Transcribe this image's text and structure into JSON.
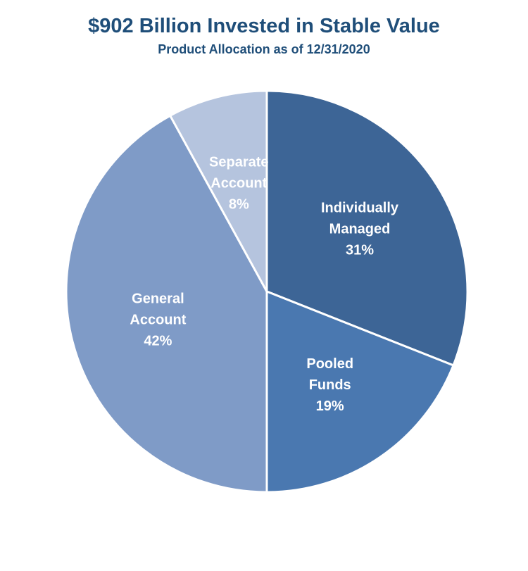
{
  "chart_data": {
    "type": "pie",
    "title": "$902 Billion Invested in Stable Value",
    "subtitle": "Product Allocation as of 12/31/2020",
    "slices": [
      {
        "label_lines": [
          "Individually",
          "Managed"
        ],
        "value": 31,
        "value_label": "31%",
        "color": "#3d6596"
      },
      {
        "label_lines": [
          "Pooled",
          "Funds"
        ],
        "value": 19,
        "value_label": "19%",
        "color": "#4a78b0"
      },
      {
        "label_lines": [
          "General",
          "Account"
        ],
        "value": 42,
        "value_label": "42%",
        "color": "#7f9bc7"
      },
      {
        "label_lines": [
          "Separate",
          "Account"
        ],
        "value": 8,
        "value_label": "8%",
        "color": "#b5c4de"
      }
    ],
    "start_angle_deg": 0,
    "direction": "clockwise",
    "slice_border_color": "#ffffff"
  }
}
